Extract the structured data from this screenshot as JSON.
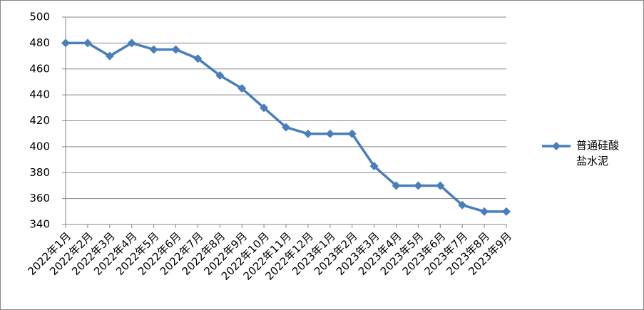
{
  "chart_data": {
    "type": "line",
    "categories": [
      "2022年1月",
      "2022年2月",
      "2022年3月",
      "2022年4月",
      "2022年5月",
      "2022年6月",
      "2022年7月",
      "2022年8月",
      "2022年9月",
      "2022年10月",
      "2022年11月",
      "2022年12月",
      "2023年1月",
      "2023年2月",
      "2023年3月",
      "2023年4月",
      "2023年5月",
      "2023年6月",
      "2023年7月",
      "2023年8月",
      "2023年9月"
    ],
    "series": [
      {
        "name": "普通硅酸盐水泥",
        "color": "#4a7ebb",
        "values": [
          480,
          480,
          470,
          480,
          475,
          475,
          468,
          455,
          445,
          430,
          415,
          410,
          410,
          410,
          385,
          370,
          370,
          370,
          355,
          350,
          350
        ]
      }
    ],
    "ylim": [
      340,
      500
    ],
    "yticks": [
      340,
      360,
      380,
      400,
      420,
      440,
      460,
      480,
      500
    ],
    "grid": true,
    "legend": "right"
  }
}
